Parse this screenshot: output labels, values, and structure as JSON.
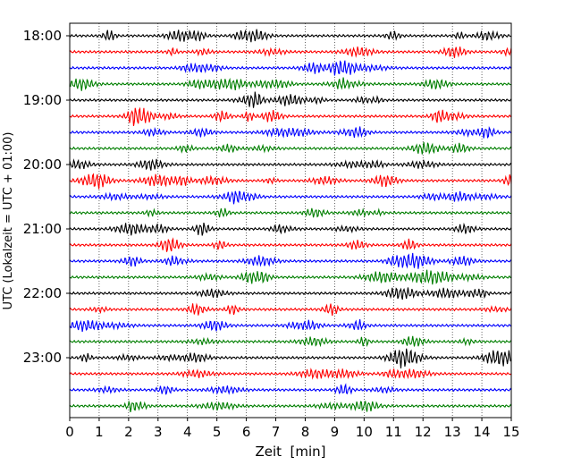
{
  "chart_data": {
    "type": "line",
    "subtype": "helicorder",
    "title": "",
    "xlabel": "Zeit  [min]",
    "ylabel": "UTC (Lokalzeit = UTC + 01:00)",
    "xlim": [
      0,
      15
    ],
    "x_ticks": [
      "0",
      "1",
      "2",
      "3",
      "4",
      "5",
      "6",
      "7",
      "8",
      "9",
      "10",
      "11",
      "12",
      "13",
      "14",
      "15"
    ],
    "y_ticks": [
      "18:00",
      "19:00",
      "20:00",
      "21:00",
      "22:00",
      "23:00"
    ],
    "trace_minutes": 15,
    "traces_per_hour": 4,
    "trace_count": 24,
    "color_cycle": [
      "#000000",
      "#ff0000",
      "#0000ff",
      "#007f00"
    ],
    "grid": {
      "vertical": true,
      "style": "dotted"
    },
    "legend": "none"
  }
}
